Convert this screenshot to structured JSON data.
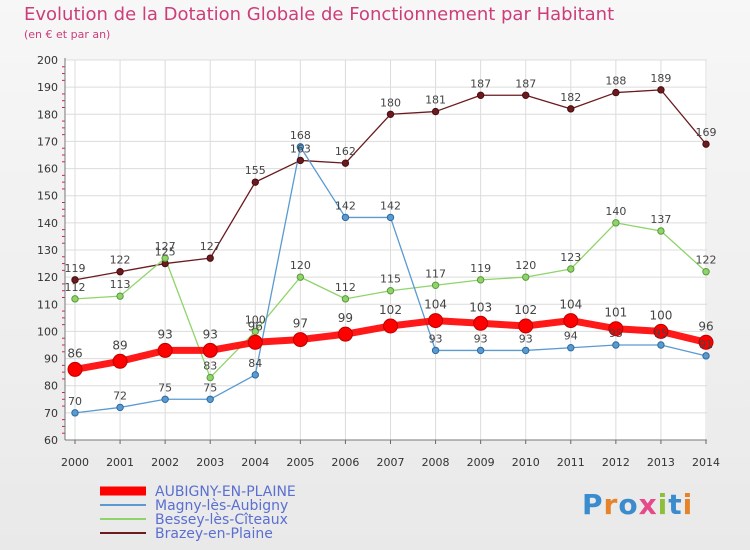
{
  "title": "Evolution de la Dotation Globale de Fonctionnement par Habitant",
  "subtitle": "(en € et par an)",
  "logo": "Proxiti",
  "chart_data": {
    "type": "line",
    "x": [
      2000,
      2001,
      2002,
      2003,
      2004,
      2005,
      2006,
      2007,
      2008,
      2009,
      2010,
      2011,
      2012,
      2013,
      2014
    ],
    "xticks": [
      "2000",
      "2001",
      "2002",
      "2003",
      "2004",
      "2005",
      "2006",
      "2007",
      "2008",
      "2009",
      "2010",
      "2011",
      "2012",
      "2013",
      "2014"
    ],
    "ylim": [
      60,
      200
    ],
    "yticks": [
      "60",
      "70",
      "80",
      "90",
      "100",
      "110",
      "120",
      "130",
      "140",
      "150",
      "160",
      "170",
      "180",
      "190",
      "200"
    ],
    "grid": true,
    "legend_position": "bottom-left",
    "series": [
      {
        "name": "Brazey-en-Plaine",
        "color": "#6b1a1e",
        "highlight": false,
        "values": [
          119,
          122,
          125,
          127,
          155,
          163,
          162,
          180,
          181,
          187,
          187,
          182,
          188,
          189,
          169
        ],
        "labels": [
          "119",
          "122",
          "125",
          "127",
          "155",
          "163",
          "162",
          "180",
          "181",
          "187",
          "187",
          "182",
          "188",
          "189",
          "169"
        ]
      },
      {
        "name": "Bessey-lès-Cîteaux",
        "color": "#8ed46a",
        "highlight": false,
        "values": [
          112,
          113,
          127,
          83,
          100,
          120,
          112,
          115,
          117,
          119,
          120,
          123,
          140,
          137,
          122
        ],
        "labels": [
          "112",
          "113",
          "127",
          "83",
          "100",
          "120",
          "112",
          "115",
          "117",
          "119",
          "120",
          "123",
          "140",
          "137",
          "122"
        ]
      },
      {
        "name": "Magny-lès-Aubigny",
        "color": "#5a9ad0",
        "highlight": false,
        "values": [
          70,
          72,
          75,
          75,
          84,
          168,
          142,
          142,
          93,
          93,
          93,
          94,
          95,
          95,
          91
        ],
        "labels": [
          "70",
          "72",
          "75",
          "75",
          "84",
          "168",
          "142",
          "142",
          "93",
          "93",
          "93",
          "94",
          "95",
          "95",
          "91"
        ]
      },
      {
        "name": "AUBIGNY-EN-PLAINE",
        "color": "#ff0000",
        "highlight": true,
        "values": [
          86,
          89,
          93,
          93,
          96,
          97,
          99,
          102,
          104,
          103,
          102,
          104,
          101,
          100,
          96
        ],
        "labels": [
          "86",
          "89",
          "93",
          "93",
          "96",
          "97",
          "99",
          "102",
          "104",
          "103",
          "102",
          "104",
          "101",
          "100",
          "96"
        ]
      }
    ]
  },
  "legend": [
    {
      "name": "AUBIGNY-EN-PLAINE",
      "color": "#ff0000",
      "thick": true
    },
    {
      "name": "Magny-lès-Aubigny",
      "color": "#5a9ad0",
      "thick": false
    },
    {
      "name": "Bessey-lès-Cîteaux",
      "color": "#8ed46a",
      "thick": false
    },
    {
      "name": "Brazey-en-Plaine",
      "color": "#6b1a1e",
      "thick": false
    }
  ]
}
